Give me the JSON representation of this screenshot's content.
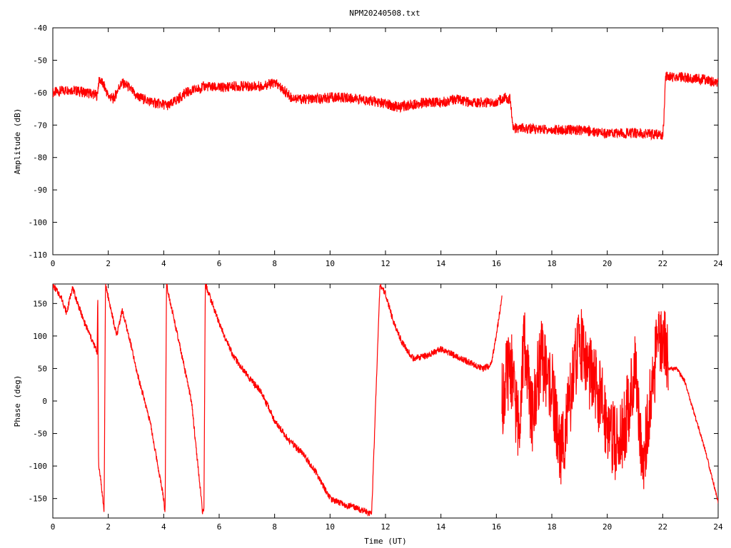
{
  "title": "NPM20240508.txt",
  "chart_data": [
    {
      "type": "line",
      "panel": "amplitude",
      "ylabel": "Amplitude (dB)",
      "xlabel": "",
      "xlim": [
        0,
        24
      ],
      "ylim": [
        -110,
        -40
      ],
      "x_ticks": [
        0,
        2,
        4,
        6,
        8,
        10,
        12,
        14,
        16,
        18,
        20,
        22,
        24
      ],
      "y_ticks": [
        -40,
        -50,
        -60,
        -70,
        -80,
        -90,
        -100,
        -110
      ],
      "grid": false,
      "color": "#ff0000",
      "series": [
        {
          "noise": 1.6,
          "x": [
            0,
            0.3,
            0.6,
            0.9,
            1.2,
            1.5,
            1.6,
            1.65,
            1.7,
            1.85,
            2.0,
            2.2,
            2.4,
            2.5,
            2.7,
            3.0,
            3.3,
            3.6,
            3.9,
            4.2,
            4.5,
            4.8,
            5.2,
            5.5,
            6.0,
            6.5,
            7.0,
            7.5,
            8.0,
            8.3,
            8.6,
            9.0,
            9.5,
            10.0,
            10.5,
            11.0,
            11.5,
            12.0,
            12.5,
            13.0,
            13.5,
            14.0,
            14.5,
            15.0,
            15.5,
            16.0,
            16.3,
            16.5,
            16.55,
            16.6,
            17.0,
            18.0,
            19.0,
            20.0,
            21.0,
            22.0,
            22.05,
            22.1,
            22.2,
            22.5,
            23.0,
            23.5,
            24.0
          ],
          "y": [
            -60,
            -59.5,
            -59,
            -59.5,
            -60,
            -60.5,
            -61,
            -57,
            -56,
            -58,
            -61,
            -62,
            -58,
            -57,
            -58,
            -61,
            -62,
            -63,
            -63.5,
            -64,
            -62,
            -60,
            -59,
            -58,
            -58.5,
            -58,
            -58,
            -58,
            -57,
            -59,
            -61.5,
            -62,
            -62,
            -61.5,
            -61.5,
            -62,
            -62.5,
            -63.5,
            -64.5,
            -63.5,
            -63,
            -63,
            -62,
            -63,
            -63,
            -63,
            -61.5,
            -62,
            -66,
            -71,
            -71,
            -71.5,
            -71.5,
            -72.5,
            -72.5,
            -73,
            -67,
            -55,
            -55,
            -55,
            -55.5,
            -56,
            -57
          ]
        }
      ]
    },
    {
      "type": "line",
      "panel": "phase",
      "ylabel": "Phase (deg)",
      "xlabel": "Time (UT)",
      "xlim": [
        0,
        24
      ],
      "ylim": [
        -180,
        180
      ],
      "x_ticks": [
        0,
        2,
        4,
        6,
        8,
        10,
        12,
        14,
        16,
        18,
        20,
        22,
        24
      ],
      "y_ticks": [
        150,
        100,
        50,
        0,
        -50,
        -100,
        -150
      ],
      "grid": false,
      "color": "#ff0000",
      "series": [
        {
          "noise": 5,
          "x": [
            0,
            0.3,
            0.5,
            0.7,
            0.9,
            1.1,
            1.3,
            1.5,
            1.6,
            1.62,
            1.65,
            1.7,
            1.8,
            1.85,
            1.9,
            2.0,
            2.2,
            2.3,
            2.5,
            2.8,
            3.0,
            3.5,
            4.0,
            4.05,
            4.1,
            4.5,
            5.0,
            5.4,
            5.45,
            5.5,
            6.0,
            6.5,
            7.0,
            7.5,
            8.0,
            8.5,
            9.0,
            9.5,
            10.0,
            10.5,
            11.0,
            11.3,
            11.5,
            11.8,
            12.0,
            12.3,
            12.6,
            13.0,
            13.5,
            14.0,
            14.5,
            15.0,
            15.5,
            15.8,
            16.0,
            16.2
          ],
          "y": [
            178,
            160,
            135,
            175,
            150,
            125,
            105,
            85,
            75,
            180,
            -100,
            -110,
            -150,
            -170,
            180,
            160,
            120,
            100,
            140,
            90,
            50,
            -30,
            -150,
            -175,
            180,
            100,
            0,
            -170,
            -175,
            180,
            120,
            70,
            40,
            15,
            -30,
            -60,
            -80,
            -110,
            -150,
            -160,
            -165,
            -170,
            -175,
            180,
            165,
            120,
            90,
            65,
            70,
            80,
            70,
            60,
            50,
            55,
            100,
            160
          ]
        },
        {
          "noise": 60,
          "x": [
            16.2,
            16.5,
            16.8,
            17.0,
            17.3,
            17.6,
            18.0,
            18.3,
            18.6,
            19.0,
            19.3,
            19.6,
            20.0,
            20.3,
            20.6,
            21.0,
            21.3,
            21.6,
            21.8,
            22.0,
            22.2
          ],
          "y": [
            0,
            60,
            -40,
            90,
            -30,
            70,
            20,
            -80,
            -20,
            100,
            50,
            20,
            -30,
            -70,
            -40,
            40,
            -90,
            10,
            80,
            110,
            60
          ]
        },
        {
          "noise": 3,
          "x": [
            22.2,
            22.5,
            22.8,
            23.0,
            23.5,
            24.0
          ],
          "y": [
            50,
            50,
            30,
            0,
            -70,
            -155
          ]
        }
      ]
    }
  ]
}
